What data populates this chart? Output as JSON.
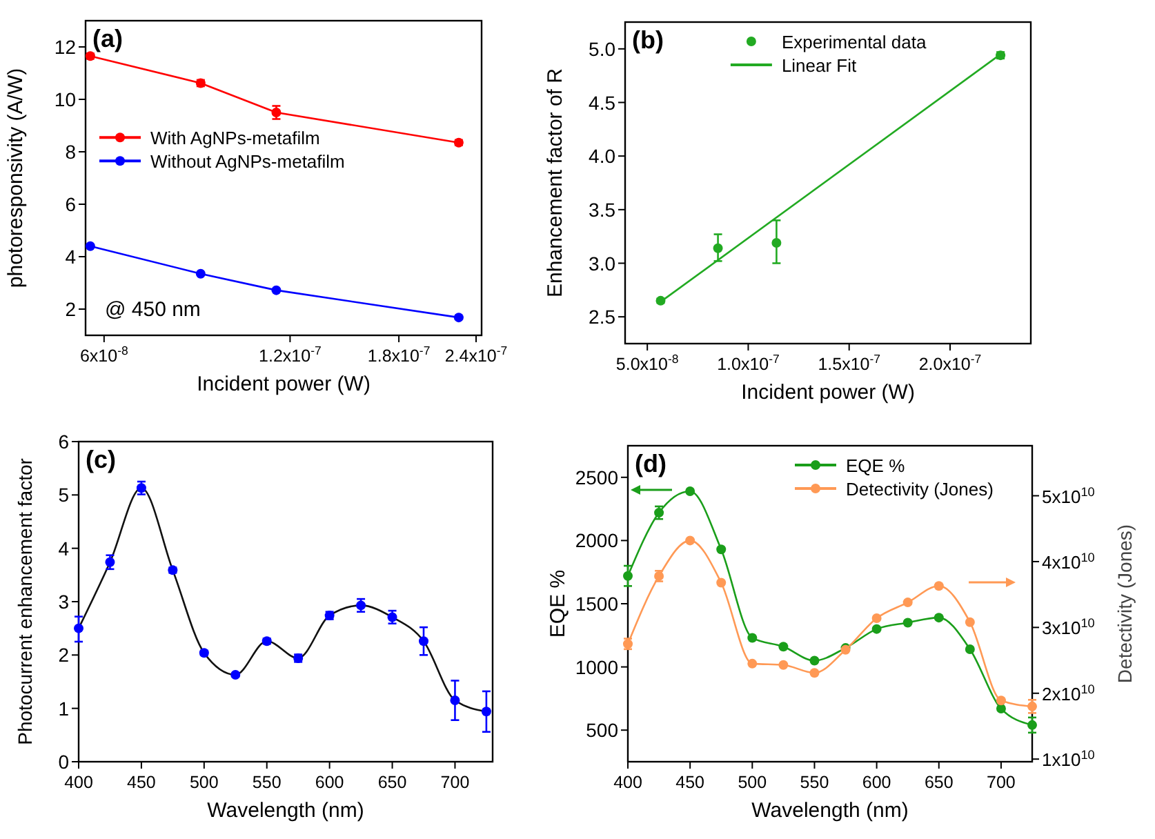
{
  "chart_data": [
    {
      "type": "line",
      "title": "(a)",
      "xlabel": "Incident power (W)",
      "ylabel": "photoresponsivity (A/W)",
      "log": "x",
      "marker": "circle",
      "legend": "left",
      "annotations": [
        "@ 450 nm"
      ],
      "x": [
        5.7e-08,
        8.6e-08,
        1.14e-07,
        2.25e-07
      ],
      "xlim": [
        5.6e-08,
        2.45e-07
      ],
      "xticks": [
        {
          "value": 6e-08,
          "label": "6x10$^{-8}$"
        },
        {
          "value": 1.2e-07,
          "label": "1.2x10$^{-7}$"
        },
        {
          "value": 1.8e-07,
          "label": "1.8x10$^{-7}$"
        },
        {
          "value": 2.4e-07,
          "label": "2.4x10$^{-7}$"
        }
      ],
      "ylim": [
        1,
        13
      ],
      "yticks": [
        2,
        4,
        6,
        8,
        10,
        12
      ],
      "series": [
        {
          "name": "With AgNPs-metafilm",
          "color": "#ff0000",
          "values": [
            11.65,
            10.62,
            9.5,
            8.35
          ],
          "errors": [
            0.1,
            0.12,
            0.25,
            0.1
          ]
        },
        {
          "name": "Without AgNPs-metafilm",
          "color": "#0000ff",
          "values": [
            4.4,
            3.35,
            2.72,
            1.68
          ]
        }
      ]
    },
    {
      "type": "scatter",
      "title": "(b)",
      "xlabel": "Incident power (W)",
      "ylabel": "Enhancement factor of R",
      "marker": "circle",
      "legend": "top",
      "xlim": [
        3.9e-08,
        2.4e-07
      ],
      "xticks": [
        {
          "value": 5e-08,
          "label": "5.0x10$^{-8}$"
        },
        {
          "value": 1e-07,
          "label": "1.0x10$^{-7}$"
        },
        {
          "value": 1.5e-07,
          "label": "1.5x10$^{-7}$"
        },
        {
          "value": 2e-07,
          "label": "2.0x10$^{-7}$"
        }
      ],
      "ylim": [
        2.25,
        5.25
      ],
      "yticks": [
        {
          "value": 2.5,
          "label": "2.5"
        },
        {
          "value": 3,
          "label": "3.0"
        },
        {
          "value": 3.5,
          "label": "3.5"
        },
        {
          "value": 4,
          "label": "4.0"
        },
        {
          "value": 4.5,
          "label": "4.5"
        },
        {
          "value": 5,
          "label": "5.0"
        }
      ],
      "series": [
        {
          "name": "Experimental data",
          "color": "#22aa22",
          "x": [
            5.66e-08,
            8.5e-08,
            1.14e-07,
            2.25e-07
          ],
          "values": [
            2.65,
            3.14,
            3.19,
            4.94
          ],
          "errors": [
            0.02,
            [
              3.02,
              3.27
            ],
            [
              3.0,
              3.4
            ],
            0.03
          ]
        },
        {
          "name": "Linear Fit",
          "type": "line",
          "marker": "none",
          "color": "#22aa22",
          "x": [
            5.66e-08,
            2.25e-07
          ],
          "values": [
            2.64,
            4.95
          ]
        }
      ]
    },
    {
      "type": "scatter",
      "title": "(c)",
      "xlabel": "Wavelength (nm)",
      "ylabel": "Photocurrent enhancement factor",
      "marker": "circle",
      "x": [
        400,
        425,
        450,
        475,
        500,
        525,
        550,
        575,
        600,
        625,
        650,
        675,
        700,
        725
      ],
      "xlim": [
        400,
        730
      ],
      "xticks": [
        400,
        450,
        500,
        550,
        600,
        650,
        700
      ],
      "ylim": [
        0,
        6
      ],
      "yticks": [
        0,
        1,
        2,
        3,
        4,
        5,
        6
      ],
      "series": [
        {
          "type": "line",
          "marker": "none",
          "color": "#111111",
          "values": [
            2.5,
            3.74,
            5.13,
            3.59,
            2.04,
            1.63,
            2.26,
            1.94,
            2.74,
            2.93,
            2.71,
            2.26,
            1.15,
            0.94
          ]
        },
        {
          "color": "#0000ff",
          "values": [
            2.5,
            3.74,
            5.13,
            3.59,
            2.04,
            1.63,
            2.26,
            1.94,
            2.74,
            2.93,
            2.71,
            2.26,
            1.15,
            0.94
          ],
          "errors": [
            [
              2.25,
              2.72
            ],
            0.13,
            0.12,
            0.05,
            0.04,
            0.03,
            0.05,
            0.07,
            0.07,
            0.12,
            0.12,
            0.26,
            [
              0.78,
              1.52
            ],
            [
              0.56,
              1.32
            ]
          ]
        }
      ]
    },
    {
      "type": "line",
      "title": "(d)",
      "xlabel": "Wavelength (nm)",
      "ylabel": "EQE %",
      "y2label": "Detectivity (Jones)",
      "marker": "circle",
      "legend": "top right",
      "x": [
        400,
        425,
        450,
        475,
        500,
        525,
        550,
        575,
        600,
        625,
        650,
        675,
        700,
        725
      ],
      "xlim": [
        400,
        725
      ],
      "xticks": [
        400,
        450,
        500,
        550,
        600,
        650,
        700
      ],
      "ylim": [
        250,
        2750
      ],
      "yticks": [
        500,
        1000,
        1500,
        2000,
        2500
      ],
      "y2lim": [
        9600000000.0,
        57600000000.0
      ],
      "y2ticks": [
        {
          "value": 10000000000.0,
          "label": "1x10$^{10}$"
        },
        {
          "value": 20000000000.0,
          "label": "2x10$^{10}$"
        },
        {
          "value": 30000000000.0,
          "label": "3x10$^{10}$"
        },
        {
          "value": 40000000000.0,
          "label": "4x10$^{10}$"
        },
        {
          "value": 50000000000.0,
          "label": "5x10$^{10}$"
        }
      ],
      "series": [
        {
          "name": "EQE %",
          "color": "#1a9e1a",
          "values": [
            1720,
            2220,
            2390,
            1930,
            1230,
            1160,
            1050,
            1150,
            1300,
            1350,
            1390,
            1140,
            670,
            540
          ],
          "errors": [
            80,
            50,
            null,
            null,
            null,
            null,
            null,
            null,
            null,
            null,
            null,
            null,
            null,
            60
          ]
        },
        {
          "name": "Detectivity (Jones)",
          "axis": "y2",
          "color": "#ff9955",
          "values": [
            27500000000.0,
            37800000000.0,
            43200000000.0,
            36800000000.0,
            24500000000.0,
            24300000000.0,
            23100000000.0,
            26600000000.0,
            31400000000.0,
            33800000000.0,
            36300000000.0,
            30800000000.0,
            18900000000.0,
            18000000000.0
          ],
          "errors": [
            800000000.0,
            800000000.0,
            null,
            null,
            null,
            null,
            null,
            null,
            null,
            null,
            null,
            null,
            null,
            1000000000.0
          ]
        }
      ]
    }
  ]
}
